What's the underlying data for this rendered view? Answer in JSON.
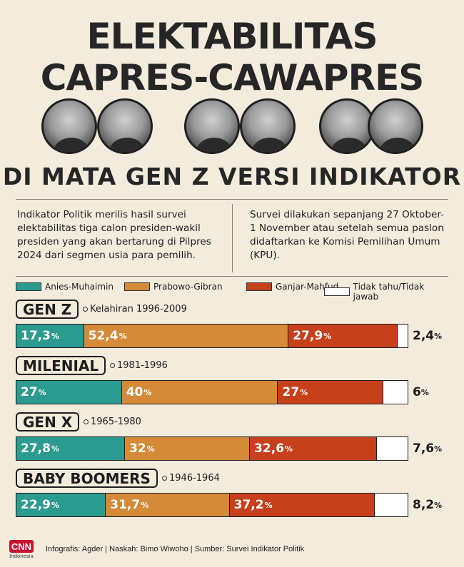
{
  "header": {
    "title_line1": "ELEKTABILITAS",
    "title_line2": "CAPRES-CAWAPRES",
    "title_line3": "DI MATA GEN Z VERSI INDIKATOR"
  },
  "intro": {
    "left": "Indikator Politik merilis hasil survei elektabilitas tiga calon presiden-wakil presiden yang akan bertarung di Pilpres 2024 dari segmen usia para pemilih.",
    "right": "Survei dilakukan sepanjang 27 Oktober-1 November atau setelah semua paslon didaftarkan ke Komisi Pemilihan Umum (KPU)."
  },
  "footer": {
    "logo": "CNN",
    "logo_sub": "Indonesia",
    "credit": "Infografis: Agder | Naskah: Bimo Wiwoho | Sumber: Survei Indikator Politik"
  },
  "chart_data": {
    "type": "bar",
    "stacked": true,
    "orientation": "horizontal",
    "unit": "%",
    "categories": [
      "GEN Z",
      "MILENIAL",
      "GEN X",
      "BABY BOOMERS"
    ],
    "category_years": [
      "Kelahiran 1996-2009",
      "1981-1996",
      "1965-1980",
      "1946-1964"
    ],
    "series": [
      {
        "name": "Anies-Muhaimin",
        "color": "#2b9a8f",
        "values": [
          17.3,
          27,
          27.8,
          22.9
        ],
        "labels": [
          "17,3",
          "27",
          "27,8",
          "22,9"
        ]
      },
      {
        "name": "Prabowo-Gibran",
        "color": "#d58a37",
        "values": [
          52.4,
          40,
          32,
          31.7
        ],
        "labels": [
          "52,4",
          "40",
          "32",
          "31,7"
        ]
      },
      {
        "name": "Ganjar-Mahfud",
        "color": "#c7401c",
        "values": [
          27.9,
          27,
          32.6,
          37.2
        ],
        "labels": [
          "27,9",
          "27",
          "32,6",
          "37,2"
        ]
      },
      {
        "name": "Tidak tahu/Tidak jawab",
        "color": "#ffffff",
        "values": [
          2.4,
          6,
          7.6,
          8.2
        ],
        "labels": [
          "2,4",
          "6",
          "7,6",
          "8,2"
        ]
      }
    ]
  }
}
